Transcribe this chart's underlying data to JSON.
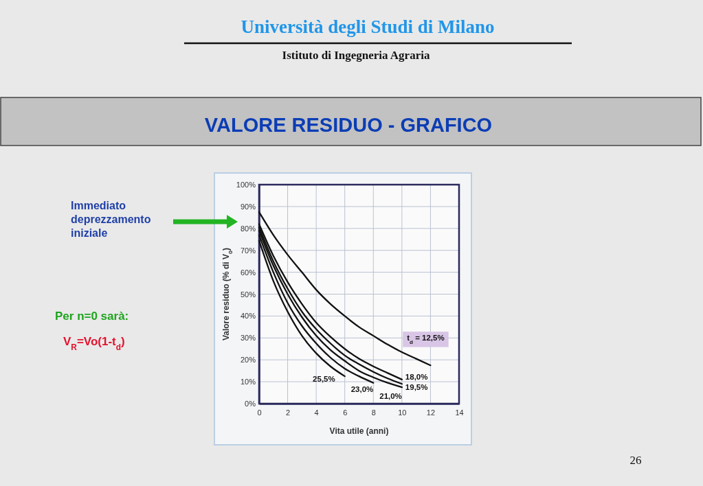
{
  "chart_data": {
    "type": "line",
    "title": "VALORE RESIDUO - GRAFICO",
    "xlabel": "Vita utile (anni)",
    "ylabel": "Valore residuo (% di V$_{o}$)",
    "xlim": [
      0,
      14
    ],
    "xticks": [
      0,
      2,
      4,
      6,
      8,
      10,
      12,
      14
    ],
    "ylim": [
      0,
      100
    ],
    "yticks": [
      {
        "value": 0,
        "label": "0%"
      },
      {
        "value": 10,
        "label": "10%"
      },
      {
        "value": 20,
        "label": "20%"
      },
      {
        "value": 30,
        "label": "30%"
      },
      {
        "value": 40,
        "label": "40%"
      },
      {
        "value": 50,
        "label": "50%"
      },
      {
        "value": 60,
        "label": "60%"
      },
      {
        "value": 70,
        "label": "70%"
      },
      {
        "value": 80,
        "label": "80%"
      },
      {
        "value": 90,
        "label": "90%"
      },
      {
        "value": 100,
        "label": "100%"
      }
    ],
    "grid": true,
    "marker": "none",
    "series": [
      {
        "name": "t$_{d}$ = 12,5%",
        "color": "#111111",
        "x": [
          0,
          1,
          2,
          3,
          4,
          5,
          6,
          7,
          8,
          9,
          10,
          11,
          12
        ],
        "values": [
          87.5,
          77,
          68,
          60,
          52,
          45.5,
          40,
          35,
          31,
          27,
          23.5,
          20.5,
          17.5
        ]
      },
      {
        "name": "18,0%",
        "color": "#111111",
        "x": [
          0,
          1,
          2,
          3,
          4,
          5,
          6,
          7,
          8,
          9,
          10
        ],
        "values": [
          82,
          67.5,
          55.5,
          45.5,
          37,
          30.5,
          25,
          20.5,
          17,
          14,
          11
        ]
      },
      {
        "name": "19,5%",
        "color": "#111111",
        "x": [
          0,
          1,
          2,
          3,
          4,
          5,
          6,
          7,
          8,
          9,
          10
        ],
        "values": [
          80.5,
          65,
          52.5,
          42,
          34,
          27.5,
          22,
          18,
          14.5,
          11.5,
          9
        ]
      },
      {
        "name": "21,0%",
        "color": "#111111",
        "x": [
          0,
          1,
          2,
          3,
          4,
          5,
          6,
          7,
          8,
          9,
          10
        ],
        "values": [
          79,
          63,
          50,
          39.5,
          31,
          24.5,
          19.5,
          15,
          12,
          9.5,
          7.5
        ]
      },
      {
        "name": "23,0%",
        "color": "#111111",
        "x": [
          0,
          1,
          2,
          3,
          4,
          5,
          6,
          7,
          8
        ],
        "values": [
          77,
          60,
          46,
          35.5,
          27.5,
          21,
          16,
          12.5,
          9.5
        ]
      },
      {
        "name": "25,5%",
        "color": "#111111",
        "x": [
          0,
          1,
          2,
          3,
          4,
          5,
          6
        ],
        "values": [
          74.5,
          56,
          42,
          31,
          23,
          17,
          12.5
        ]
      }
    ],
    "annotations": [
      "Università degli Studi di Milano",
      "Istituto di Ingegneria Agraria",
      "Immediato deprezzamento iniziale",
      "Per n=0 sarà:",
      "V$_{R}$=Vo(1-t$_{d}$)",
      "26"
    ]
  }
}
